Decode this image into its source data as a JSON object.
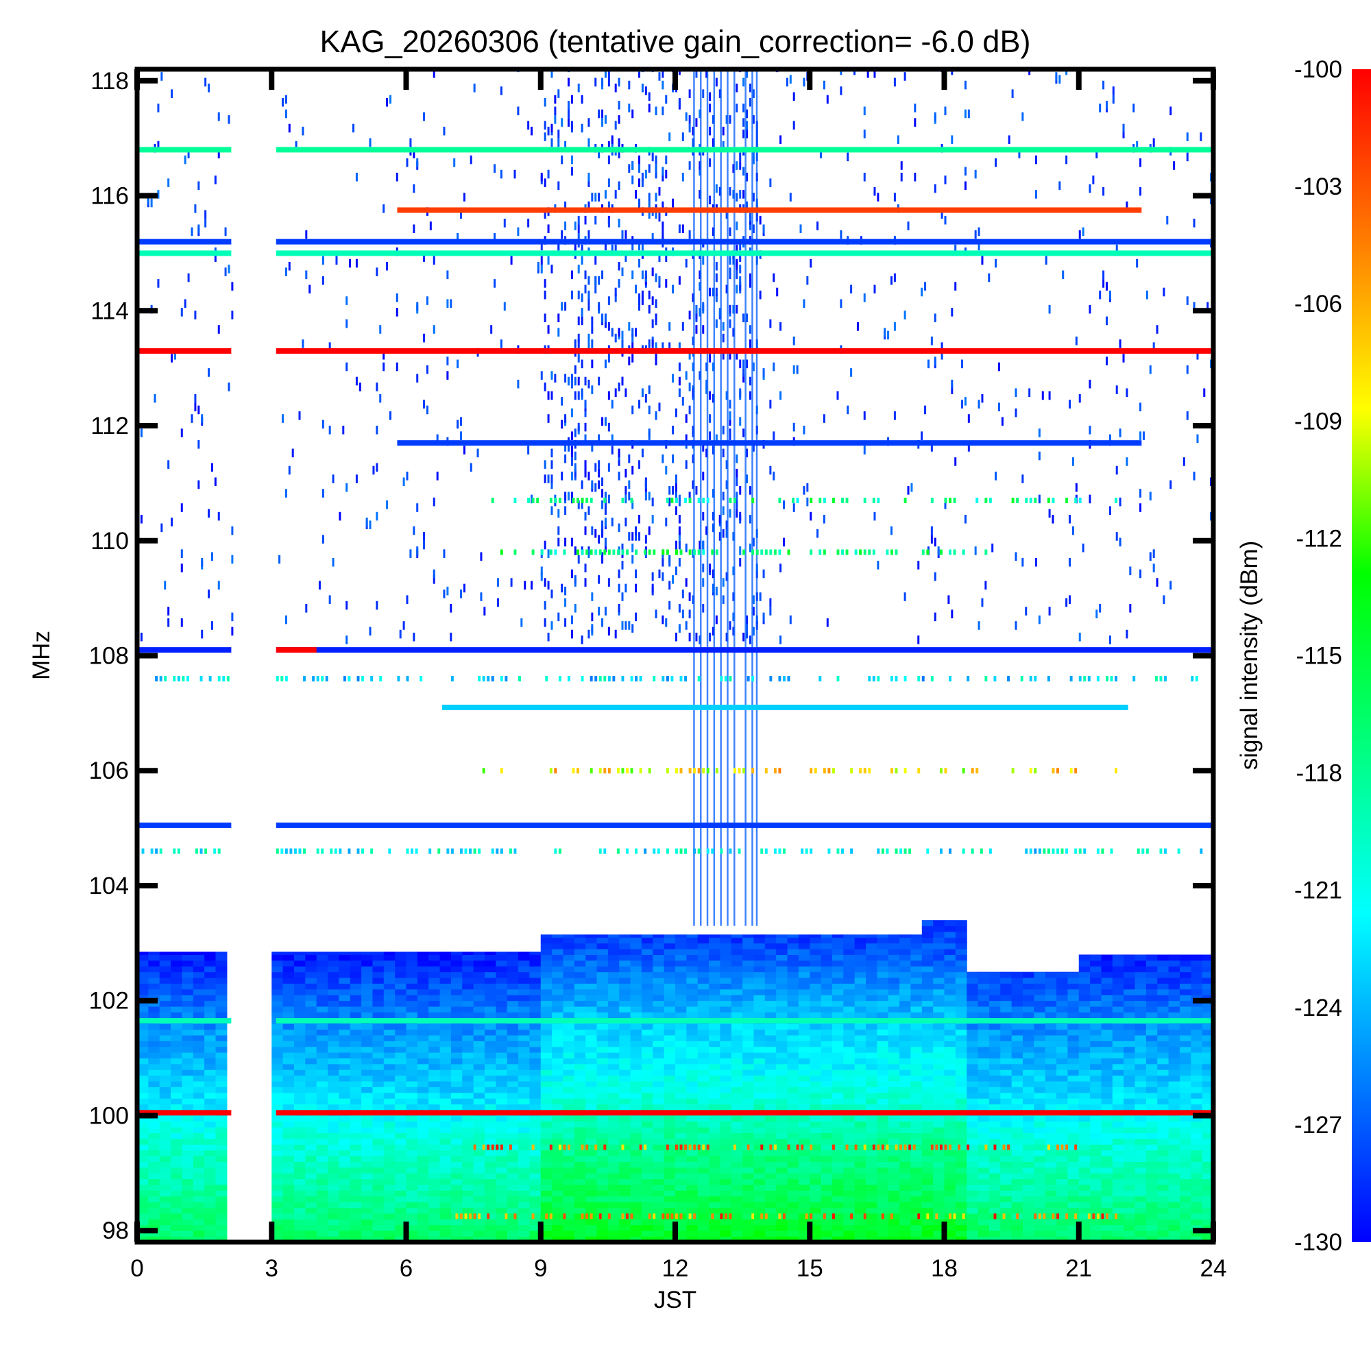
{
  "chart_data": {
    "type": "heatmap",
    "title": "KAG_20260306 (tentative gain_correction= -6.0 dB)",
    "xlabel": "JST",
    "ylabel": "MHz",
    "colorbar_label": "signal intensity (dBm)",
    "xlim": [
      0,
      24
    ],
    "ylim": [
      97.8,
      118.2
    ],
    "clim": [
      -130,
      -100
    ],
    "x_ticks": [
      0,
      3,
      6,
      9,
      12,
      15,
      18,
      21,
      24
    ],
    "x_tick_labels": [
      "0",
      "3",
      "6",
      "9",
      "12",
      "15",
      "18",
      "21",
      "24"
    ],
    "y_ticks": [
      98,
      100,
      102,
      104,
      106,
      108,
      110,
      112,
      114,
      116,
      118
    ],
    "y_tick_labels": [
      "98",
      "100",
      "102",
      "104",
      "106",
      "108",
      "110",
      "112",
      "114",
      "116",
      "118"
    ],
    "colorbar_ticks": [
      -100,
      -103,
      -106,
      -109,
      -112,
      -115,
      -118,
      -121,
      -124,
      -127,
      -130
    ],
    "colorbar_tick_labels": [
      "-100",
      "-103",
      "-106",
      "-109",
      "-112",
      "-115",
      "-118",
      "-121",
      "-124",
      "-127",
      "-130"
    ],
    "colormap": [
      "#0000ff",
      "#0080ff",
      "#00ffff",
      "#00ff80",
      "#00ff00",
      "#ffff00",
      "#ff8000",
      "#ff0000"
    ],
    "data_gap_jst": [
      2.1,
      3.0
    ],
    "narrow_gap_jst": [
      3.0,
      3.1
    ],
    "persistent_lines": [
      {
        "freq_mhz": 116.8,
        "t_start": 0,
        "t_end": 24,
        "dbm": -118
      },
      {
        "freq_mhz": 115.75,
        "t_start": 5.8,
        "t_end": 22.4,
        "dbm": -102
      },
      {
        "freq_mhz": 115.2,
        "t_start": 0,
        "t_end": 24,
        "dbm": -128
      },
      {
        "freq_mhz": 115.0,
        "t_start": 0,
        "t_end": 24,
        "dbm": -119
      },
      {
        "freq_mhz": 113.3,
        "t_start": 0,
        "t_end": 24,
        "dbm": -100
      },
      {
        "freq_mhz": 111.7,
        "t_start": 5.8,
        "t_end": 22.4,
        "dbm": -128
      },
      {
        "freq_mhz": 108.1,
        "t_start": 0,
        "t_end": 24,
        "dbm": -129
      },
      {
        "freq_mhz": 108.1,
        "t_start": 3.0,
        "t_end": 4.0,
        "dbm": -100
      },
      {
        "freq_mhz": 107.1,
        "t_start": 6.8,
        "t_end": 22.1,
        "dbm": -123
      },
      {
        "freq_mhz": 105.05,
        "t_start": 0,
        "t_end": 24,
        "dbm": -128
      },
      {
        "freq_mhz": 101.65,
        "t_start": 0,
        "t_end": 24,
        "dbm": -119
      },
      {
        "freq_mhz": 100.05,
        "t_start": 0,
        "t_end": 24,
        "dbm": -100
      }
    ],
    "intermittent_lines": [
      {
        "freq_mhz": 110.7,
        "t_start": 7.3,
        "t_end": 22.0,
        "dbm": -118
      },
      {
        "freq_mhz": 109.8,
        "t_start": 7.8,
        "t_end": 19.0,
        "dbm": -117
      },
      {
        "freq_mhz": 107.6,
        "t_start": 0,
        "t_end": 24,
        "dbm": -122
      },
      {
        "freq_mhz": 106.0,
        "t_start": 7.6,
        "t_end": 21.9,
        "dbm": -108
      },
      {
        "freq_mhz": 104.6,
        "t_start": 0,
        "t_end": 24,
        "dbm": -121
      },
      {
        "freq_mhz": 99.45,
        "t_start": 7.5,
        "t_end": 21.0,
        "dbm": -104
      },
      {
        "freq_mhz": 98.25,
        "t_start": 7.0,
        "t_end": 22.0,
        "dbm": -104
      }
    ],
    "fm_band_profile": [
      {
        "freq_mhz": 103.0,
        "dbm": -130
      },
      {
        "freq_mhz": 102.5,
        "dbm": -128
      },
      {
        "freq_mhz": 101.5,
        "dbm": -125
      },
      {
        "freq_mhz": 100.5,
        "dbm": -123
      },
      {
        "freq_mhz": 99.5,
        "dbm": -120
      },
      {
        "freq_mhz": 98.5,
        "dbm": -118
      },
      {
        "freq_mhz": 97.8,
        "dbm": -116
      }
    ],
    "fm_band_top_mhz": [
      {
        "t": 0,
        "mhz": 102.85
      },
      {
        "t": 9.0,
        "mhz": 102.85
      },
      {
        "t": 9.0,
        "mhz": 103.15
      },
      {
        "t": 17.4,
        "mhz": 103.15
      },
      {
        "t": 17.4,
        "mhz": 103.4
      },
      {
        "t": 18.4,
        "mhz": 103.4
      },
      {
        "t": 18.4,
        "mhz": 102.5
      },
      {
        "t": 21.0,
        "mhz": 102.5
      },
      {
        "t": 21.0,
        "mhz": 102.8
      },
      {
        "t": 24,
        "mhz": 102.8
      }
    ],
    "interference_columns_jst": [
      12.4,
      12.55,
      12.7,
      12.85,
      13.0,
      13.15,
      13.3,
      13.55,
      13.7,
      13.8
    ],
    "sporadic_activity": [
      {
        "t_start": 0,
        "t_end": 24,
        "f_start": 108.2,
        "f_end": 118.2,
        "density": 0.012
      },
      {
        "t_start": 9.0,
        "t_end": 13.8,
        "f_start": 108.2,
        "f_end": 118.2,
        "density": 0.05
      }
    ]
  }
}
